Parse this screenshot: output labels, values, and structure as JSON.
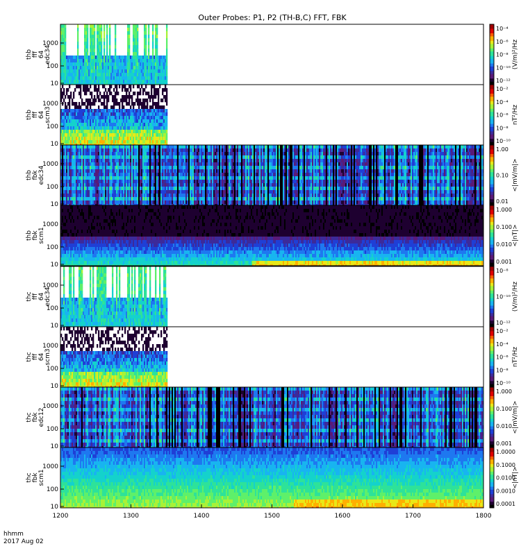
{
  "title": "Outer Probes: P1, P2 (TH-B,C) FFT, FBK",
  "footer": {
    "time_unit": "hhmm",
    "date": "2017 Aug 02"
  },
  "colors": {
    "colormap": [
      "#000000",
      "#1e0030",
      "#5a1a78",
      "#3c2a9a",
      "#1f3fd6",
      "#1e78f0",
      "#18b4f0",
      "#14d2cc",
      "#2de29a",
      "#5ef06a",
      "#a8f238",
      "#e8e818",
      "#ffb000",
      "#ff5a00",
      "#e00000",
      "#a00000"
    ]
  },
  "chart_data": {
    "type": "heatmap",
    "x_axis": {
      "range": [
        1200,
        1800
      ],
      "tick_values": [
        1200,
        1300,
        1400,
        1500,
        1600,
        1700,
        1800
      ],
      "tick_labels": [
        "1200",
        "1300",
        "1400",
        "1500",
        "1600",
        "1700",
        "1800"
      ]
    },
    "panels": [
      {
        "y_label": [
          "thb",
          "fff",
          "64",
          "edc34"
        ],
        "y_ticks": [
          "1000",
          "100",
          "10"
        ],
        "data_x_end": 1350,
        "cbar_label": "(V/m)²/Hz",
        "cbar_ticks": [
          "10⁻⁴",
          "10⁻⁶",
          "10⁻⁸",
          "10⁻¹⁰",
          "10⁻¹²"
        ],
        "style": "spiky"
      },
      {
        "y_label": [
          "thb",
          "fff",
          "64",
          "scm3"
        ],
        "y_ticks": [
          "1000",
          "100",
          "10"
        ],
        "data_x_end": 1350,
        "cbar_label": "nT²/Hz",
        "cbar_ticks": [
          "10⁻²",
          "10⁻⁴",
          "10⁻⁶",
          "10⁻⁸",
          "10⁻¹⁰"
        ],
        "style": "noisy"
      },
      {
        "y_label": [
          "thb",
          "fbk",
          "edc34"
        ],
        "y_ticks": [
          "1000",
          "100",
          "10"
        ],
        "data_x_end": 1800,
        "cbar_label": "<|mV/m|>",
        "cbar_ticks": [
          "1.00",
          "0.10",
          "0.01"
        ],
        "style": "bands"
      },
      {
        "y_label": [
          "thb",
          "fbk",
          "scm1"
        ],
        "y_ticks": [
          "1000",
          "100",
          "10"
        ],
        "data_x_end": 1800,
        "cbar_label": "<|nT|>",
        "cbar_ticks": [
          "1.000",
          "0.100",
          "0.010",
          "0.001"
        ],
        "style": "scm"
      },
      {
        "y_label": [
          "thc",
          "fff",
          "64",
          "edc34"
        ],
        "y_ticks": [
          "1000",
          "100",
          "10"
        ],
        "data_x_end": 1350,
        "cbar_label": "(V/m)²/Hz",
        "cbar_ticks": [
          "10⁻⁸",
          "10⁻¹⁰",
          "10⁻¹²"
        ],
        "style": "spiky"
      },
      {
        "y_label": [
          "thc",
          "fff",
          "64",
          "scm3"
        ],
        "y_ticks": [
          "1000",
          "100",
          "10"
        ],
        "data_x_end": 1350,
        "cbar_label": "nT²/Hz",
        "cbar_ticks": [
          "10⁻²",
          "10⁻⁴",
          "10⁻⁶",
          "10⁻⁸",
          "10⁻¹⁰"
        ],
        "style": "noisy"
      },
      {
        "y_label": [
          "thc",
          "fbk",
          "edc12"
        ],
        "y_ticks": [
          "1000",
          "100",
          "10"
        ],
        "data_x_end": 1800,
        "cbar_label": "<|mV/m|>",
        "cbar_ticks": [
          "1.000",
          "0.100",
          "0.010",
          "0.001"
        ],
        "style": "bands"
      },
      {
        "y_label": [
          "thc",
          "fbk",
          "scm1"
        ],
        "y_ticks": [
          "1000",
          "100",
          "10"
        ],
        "data_x_end": 1800,
        "cbar_label": "<|nT|>",
        "cbar_ticks": [
          "1.0000",
          "0.1000",
          "0.0100",
          "0.0010",
          "0.0001"
        ],
        "style": "scm2"
      }
    ]
  }
}
